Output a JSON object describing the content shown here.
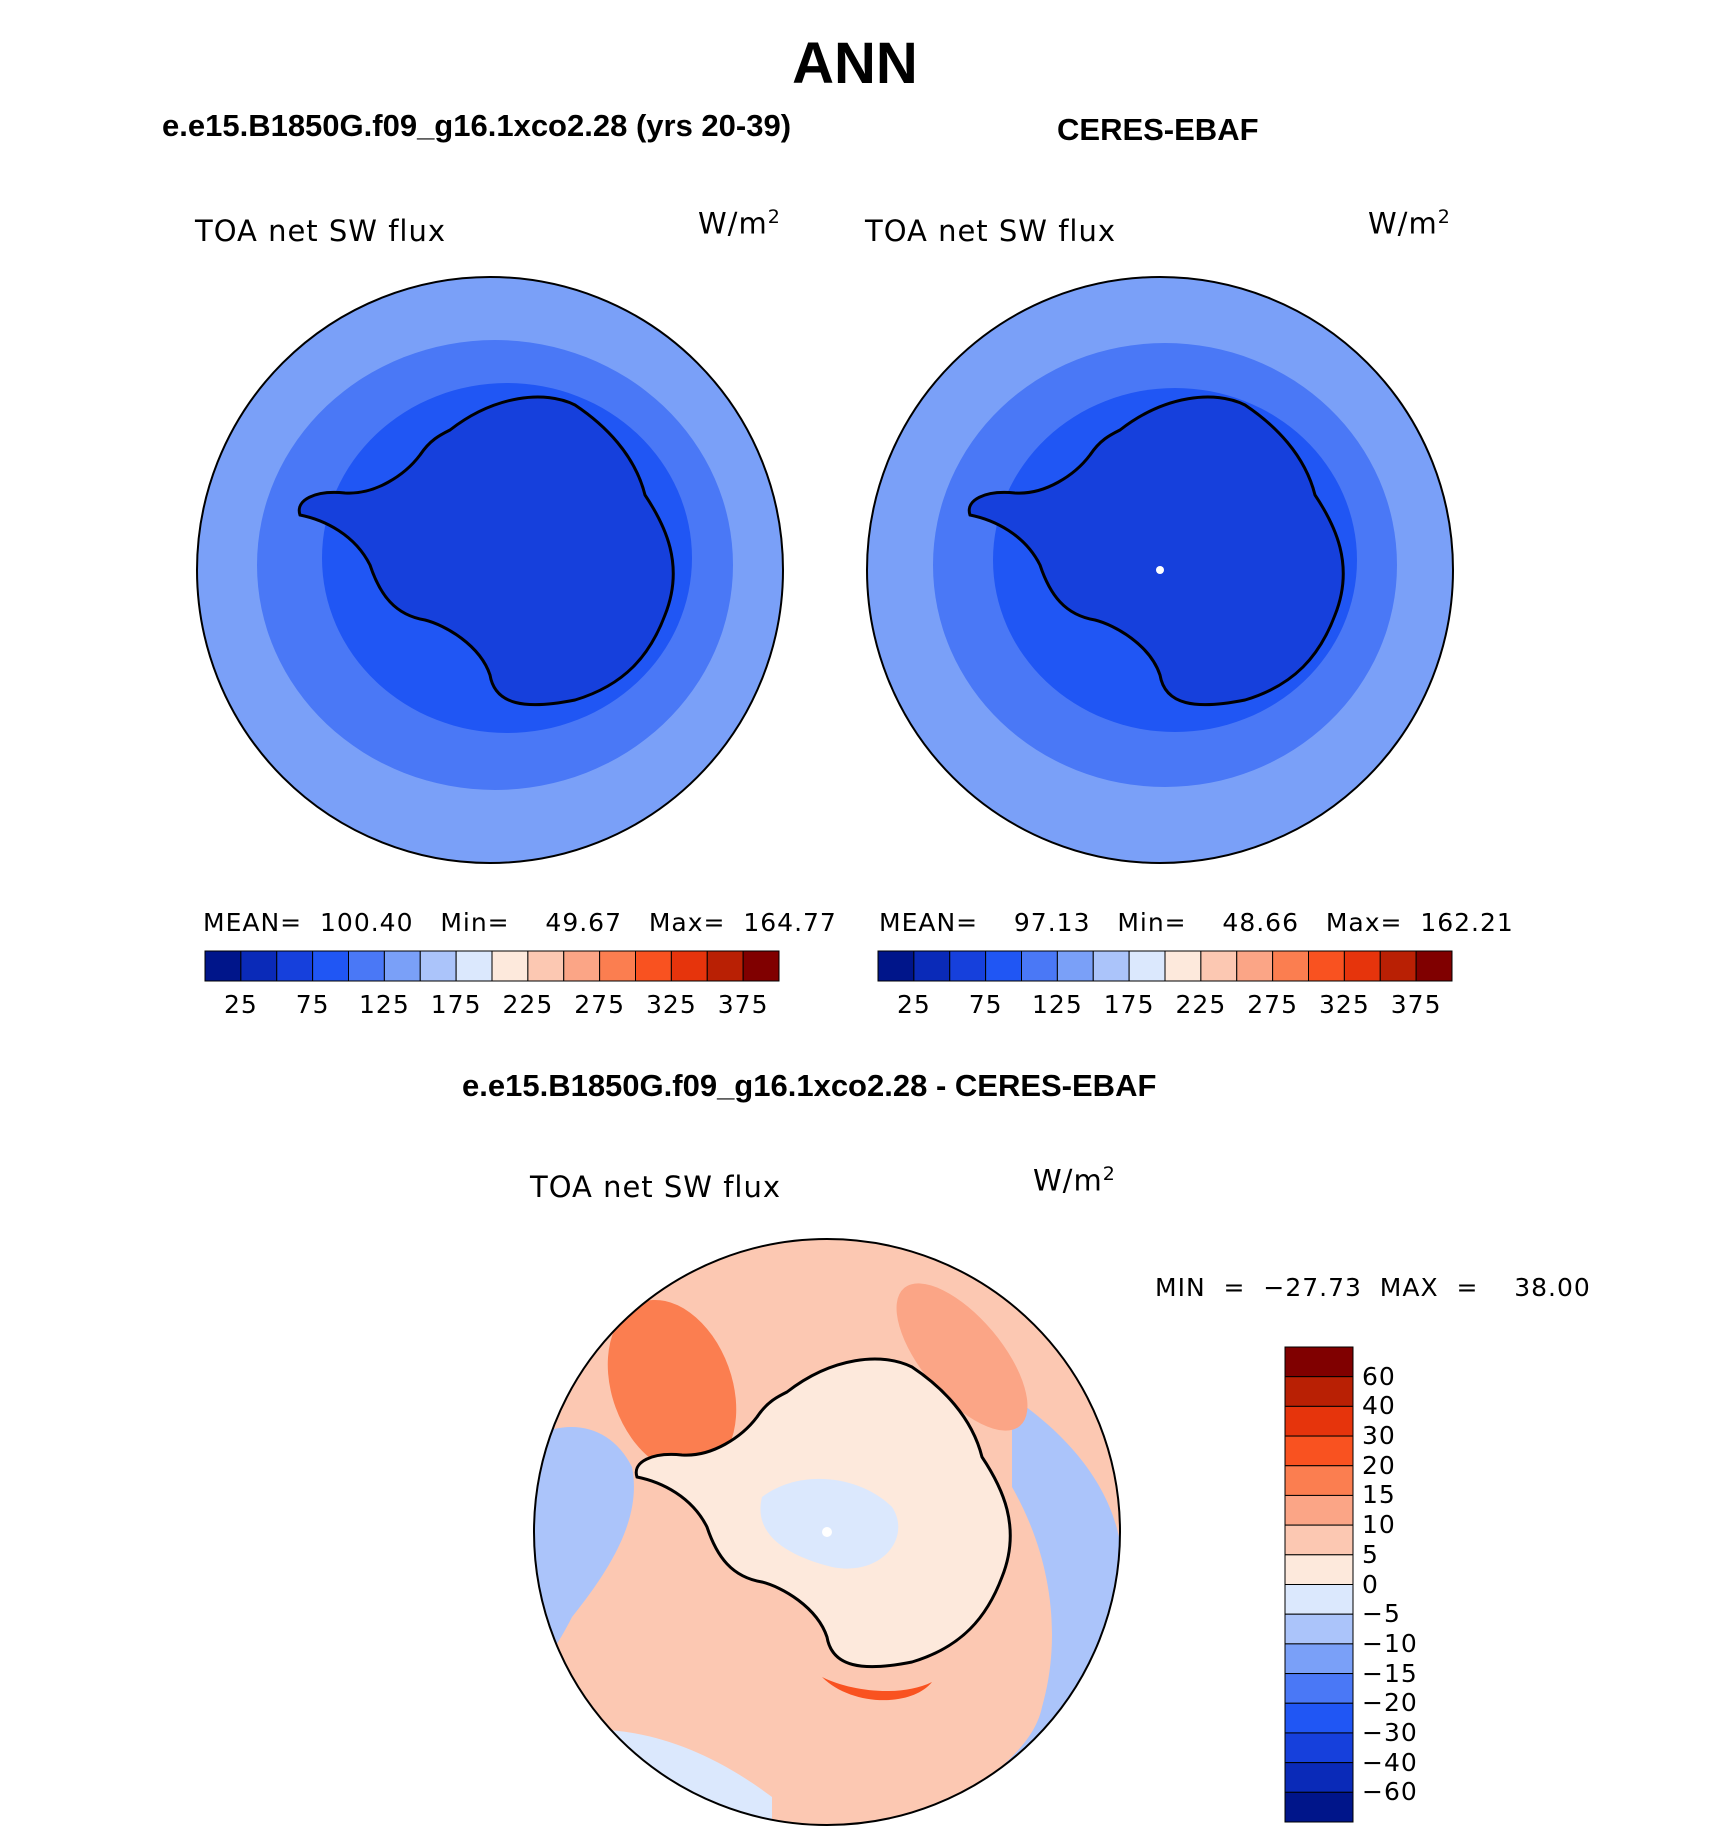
{
  "title": "ANN",
  "variable": "TOA net SW flux",
  "units_base": "W/m",
  "units_exp": "2",
  "panels": {
    "model": {
      "title": "e.e15.B1850G.f09_g16.1xco2.28 (yrs 20-39)",
      "stats": "MEAN=  100.40   Min=    49.67   Max=  164.77"
    },
    "obs": {
      "title": "CERES-EBAF",
      "stats": "MEAN=    97.13   Min=    48.66   Max=  162.21"
    },
    "diff": {
      "title": "e.e15.B1850G.f09_g16.1xco2.28 - CERES-EBAF",
      "stats": "MIN  =  −27.73  MAX  =    38.00"
    }
  },
  "colorbar_abs": {
    "colors": [
      "#00158a",
      "#0a2ab8",
      "#1640dc",
      "#2056f4",
      "#4a78f6",
      "#7aa0f8",
      "#abc4fa",
      "#dbe8fd",
      "#fde9dc",
      "#fcc8b2",
      "#fba586",
      "#fb7e50",
      "#f95220",
      "#e6340c",
      "#b92004",
      "#800000"
    ],
    "labels": [
      "25",
      "75",
      "125",
      "175",
      "225",
      "275",
      "325",
      "375"
    ]
  },
  "colorbar_diff": {
    "colors": [
      "#800000",
      "#b92004",
      "#e6340c",
      "#f95220",
      "#fb7e50",
      "#fba586",
      "#fcc8b2",
      "#fde9dc",
      "#dbe8fd",
      "#abc4fa",
      "#7aa0f8",
      "#4a78f6",
      "#2056f4",
      "#1640dc",
      "#0a2ab8",
      "#00158a"
    ],
    "labels": [
      "60",
      "40",
      "30",
      "20",
      "15",
      "10",
      "5",
      "0",
      "−5",
      "−10",
      "−15",
      "−20",
      "−30",
      "−40",
      "−60"
    ]
  }
}
